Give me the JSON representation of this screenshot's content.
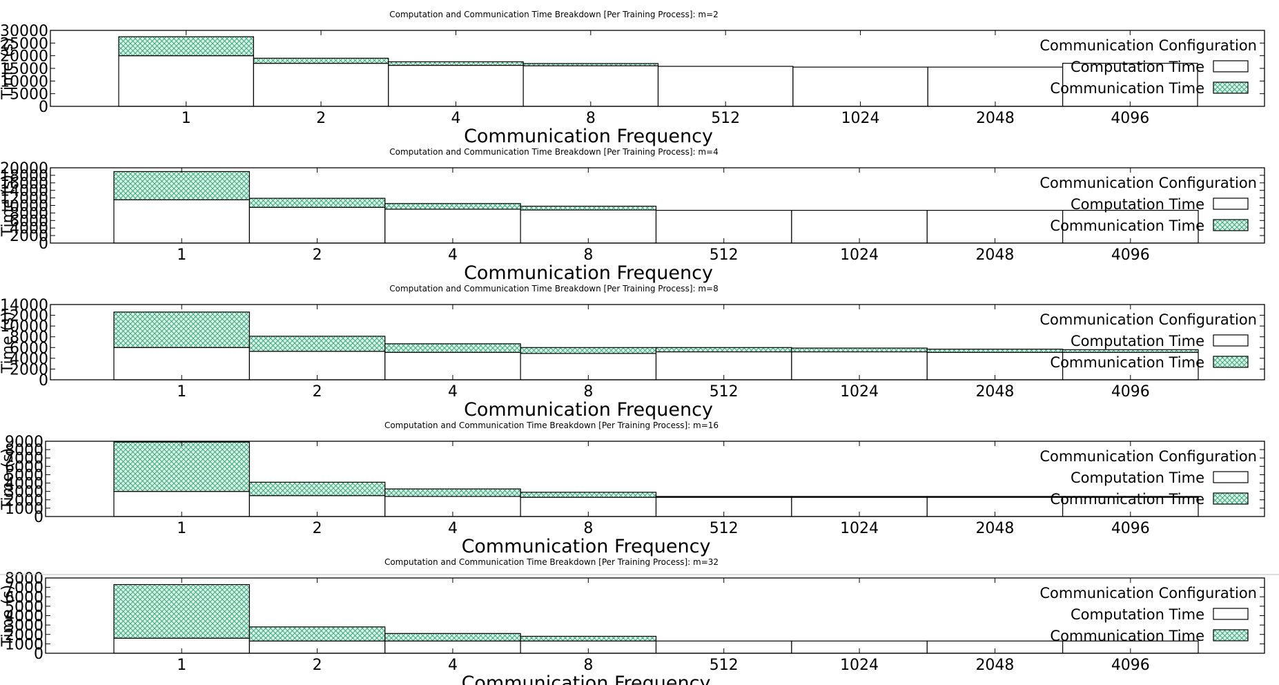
{
  "page": {
    "hatch_color": "#2e9e7a",
    "comp_fill": "#ffffff",
    "axis_color": "#000000"
  },
  "chart_data": [
    {
      "type": "bar",
      "title": "Computation and Communication Time Breakdown [Per Training Process]: m=2",
      "xlabel": "Communication Frequency",
      "ylabel": "Time (s)",
      "categories": [
        "1",
        "2",
        "4",
        "8",
        "512",
        "1024",
        "2048",
        "4096"
      ],
      "stacked": true,
      "ylim": [
        0,
        30000
      ],
      "yticks": [
        "0",
        "5000",
        "10000",
        "15000",
        "20000",
        "25000",
        "30000"
      ],
      "legend": {
        "title": "Communication Configuration",
        "placement": "right"
      },
      "series": [
        {
          "name": "Computation Time",
          "values": [
            20000,
            17000,
            16200,
            16000,
            15800,
            15500,
            15500,
            17000
          ]
        },
        {
          "name": "Communication Time",
          "values": [
            7500,
            2000,
            1400,
            900,
            0,
            0,
            0,
            0
          ]
        }
      ]
    },
    {
      "type": "bar",
      "title": "Computation and Communication Time Breakdown [Per Training Process]: m=4",
      "xlabel": "Communication Frequency",
      "ylabel": "Time (s)",
      "categories": [
        "1",
        "2",
        "4",
        "8",
        "512",
        "1024",
        "2048",
        "4096"
      ],
      "stacked": true,
      "ylim": [
        0,
        20000
      ],
      "yticks": [
        "0",
        "2000",
        "4000",
        "6000",
        "8000",
        "10000",
        "12000",
        "14000",
        "16000",
        "18000",
        "20000"
      ],
      "legend": {
        "title": "Communication Configuration",
        "placement": "right"
      },
      "series": [
        {
          "name": "Computation Time",
          "values": [
            11500,
            9500,
            9000,
            8800,
            8700,
            8700,
            8700,
            8700
          ]
        },
        {
          "name": "Communication Time",
          "values": [
            7500,
            2400,
            1500,
            1000,
            0,
            0,
            0,
            0
          ]
        }
      ]
    },
    {
      "type": "bar",
      "title": "Computation and Communication Time Breakdown [Per Training Process]: m=8",
      "xlabel": "Communication Frequency",
      "ylabel": "Time (s)",
      "categories": [
        "1",
        "2",
        "4",
        "8",
        "512",
        "1024",
        "2048",
        "4096"
      ],
      "stacked": true,
      "ylim": [
        0,
        14000
      ],
      "yticks": [
        "0",
        "2000",
        "4000",
        "6000",
        "8000",
        "10000",
        "12000",
        "14000"
      ],
      "legend": {
        "title": "Communication Configuration",
        "placement": "right"
      },
      "series": [
        {
          "name": "Computation Time",
          "values": [
            6000,
            5300,
            5100,
            4900,
            5200,
            5200,
            5100,
            5100
          ]
        },
        {
          "name": "Communication Time",
          "values": [
            6600,
            2800,
            1600,
            1100,
            800,
            700,
            600,
            500
          ]
        }
      ]
    },
    {
      "type": "bar",
      "title": "Computation and Communication Time Breakdown [Per Training Process]: m=16",
      "xlabel": "Communication Frequency",
      "ylabel": "Time (s)",
      "categories": [
        "1",
        "2",
        "4",
        "8",
        "512",
        "1024",
        "2048",
        "4096"
      ],
      "stacked": true,
      "ylim": [
        0,
        9000
      ],
      "yticks": [
        "0",
        "1000",
        "2000",
        "3000",
        "4000",
        "5000",
        "6000",
        "7000",
        "8000",
        "9000"
      ],
      "legend": {
        "title": "Communication Configuration",
        "placement": "right"
      },
      "series": [
        {
          "name": "Computation Time",
          "values": [
            3000,
            2500,
            2400,
            2300,
            2300,
            2300,
            2300,
            2300
          ]
        },
        {
          "name": "Communication Time",
          "values": [
            5900,
            1600,
            900,
            600,
            100,
            100,
            100,
            100
          ]
        }
      ]
    },
    {
      "type": "bar",
      "title": "Computation and Communication Time Breakdown [Per Training Process]: m=32",
      "xlabel": "Communication Frequency",
      "ylabel": "Time (s)",
      "categories": [
        "1",
        "2",
        "4",
        "8",
        "512",
        "1024",
        "2048",
        "4096"
      ],
      "stacked": true,
      "ylim": [
        0,
        8000
      ],
      "yticks": [
        "0",
        "1000",
        "2000",
        "3000",
        "4000",
        "5000",
        "6000",
        "7000",
        "8000"
      ],
      "legend": {
        "title": "Communication Configuration",
        "placement": "right"
      },
      "series": [
        {
          "name": "Computation Time",
          "values": [
            1600,
            1300,
            1300,
            1300,
            1300,
            1300,
            1300,
            1300
          ]
        },
        {
          "name": "Communication Time",
          "values": [
            5700,
            1500,
            800,
            500,
            0,
            0,
            0,
            0
          ]
        }
      ]
    }
  ]
}
